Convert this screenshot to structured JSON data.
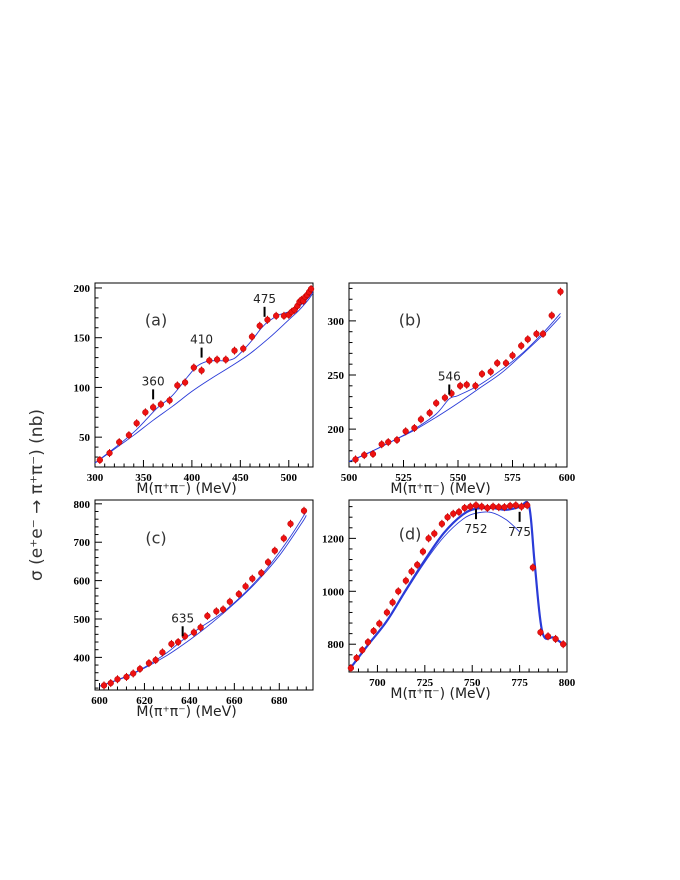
{
  "figure": {
    "y_title": "σ (e⁺e⁻ → π⁺π⁻) (nb)"
  },
  "chart_data": [
    {
      "type": "scatter",
      "panel": "(a)",
      "xlabel": "M(π⁺π⁻)  (MeV)",
      "xlim": [
        300,
        525
      ],
      "ylim": [
        20,
        205
      ],
      "xticks": [
        300,
        350,
        400,
        450,
        500
      ],
      "yticks": [
        50,
        100,
        150,
        200
      ],
      "annotations": [
        {
          "label": "360",
          "x": 360,
          "y": 88
        },
        {
          "label": "410",
          "x": 410,
          "y": 130
        },
        {
          "label": "475",
          "x": 475,
          "y": 171
        }
      ],
      "series": [
        {
          "kind": "data",
          "x": [
            305,
            315,
            325,
            335,
            343,
            352,
            360,
            368,
            377,
            385,
            393,
            402,
            410,
            418,
            426,
            435,
            444,
            453,
            462,
            470,
            478,
            487,
            495,
            500,
            503,
            506,
            509,
            511,
            513,
            515,
            517,
            519,
            521,
            523
          ],
          "y": [
            27,
            34,
            45,
            52,
            64,
            75,
            80,
            83,
            87,
            102,
            105,
            120,
            117,
            127,
            128,
            128,
            137,
            139,
            151,
            162,
            168,
            172,
            172,
            173,
            176,
            178,
            182,
            186,
            188,
            187,
            191,
            193,
            196,
            199
          ]
        },
        {
          "kind": "fit-smooth",
          "x": [
            300,
            320,
            340,
            360,
            380,
            400,
            420,
            440,
            460,
            480,
            500,
            510,
            520,
            525
          ],
          "y": [
            24,
            38,
            52,
            67,
            81,
            96,
            109,
            121,
            134,
            150,
            168,
            177,
            188,
            195
          ]
        },
        {
          "kind": "fit-structured",
          "x": [
            300,
            320,
            340,
            355,
            365,
            380,
            395,
            405,
            415,
            425,
            435,
            445,
            460,
            472,
            480,
            490,
            500,
            510,
            520,
            525
          ],
          "y": [
            24,
            39,
            55,
            70,
            80,
            92,
            110,
            121,
            126,
            127,
            127,
            130,
            145,
            160,
            167,
            173,
            176,
            181,
            190,
            197
          ]
        }
      ]
    },
    {
      "type": "scatter",
      "panel": "(b)",
      "xlabel": "M(π⁺π⁻)  (MeV)",
      "xlim": [
        500,
        600
      ],
      "ylim": [
        165,
        335
      ],
      "xticks": [
        500,
        525,
        550,
        575,
        600
      ],
      "yticks": [
        200,
        250,
        300
      ],
      "annotations": [
        {
          "label": "546",
          "x": 546,
          "y": 232
        }
      ],
      "series": [
        {
          "kind": "data",
          "x": [
            503,
            507,
            511,
            515,
            518,
            522,
            526,
            530,
            533,
            537,
            540,
            544,
            547,
            551,
            554,
            558,
            561,
            565,
            568,
            572,
            575,
            579,
            582,
            586,
            589,
            593,
            597
          ],
          "y": [
            172,
            176,
            177,
            186,
            188,
            190,
            198,
            201,
            209,
            215,
            224,
            229,
            233,
            240,
            241,
            240,
            251,
            253,
            261,
            261,
            268,
            277,
            283,
            288,
            288,
            305,
            327
          ]
        },
        {
          "kind": "fit-smooth",
          "x": [
            500,
            510,
            520,
            530,
            540,
            550,
            560,
            570,
            580,
            590,
            597
          ],
          "y": [
            170,
            179,
            189,
            199,
            211,
            224,
            238,
            252,
            270,
            289,
            304
          ]
        },
        {
          "kind": "fit-structured",
          "x": [
            500,
            510,
            520,
            530,
            540,
            546,
            550,
            560,
            570,
            580,
            590,
            597
          ],
          "y": [
            170,
            179,
            189,
            200,
            214,
            228,
            231,
            241,
            255,
            271,
            291,
            307
          ]
        }
      ]
    },
    {
      "type": "scatter",
      "panel": "(c)",
      "xlabel": "M(π⁺π⁻)  (MeV)",
      "xlim": [
        598,
        695
      ],
      "ylim": [
        315,
        810
      ],
      "xticks": [
        600,
        620,
        640,
        660,
        680
      ],
      "yticks": [
        400,
        500,
        600,
        700,
        800
      ],
      "annotations": [
        {
          "label": "635",
          "x": 637,
          "y": 455
        }
      ],
      "series": [
        {
          "kind": "data",
          "x": [
            602,
            605,
            608,
            612,
            615,
            618,
            622,
            625,
            628,
            632,
            635,
            638,
            642,
            645,
            648,
            652,
            655,
            658,
            662,
            665,
            668,
            672,
            675,
            678,
            682,
            685,
            691
          ],
          "y": [
            327,
            333,
            343,
            349,
            358,
            370,
            385,
            393,
            413,
            435,
            440,
            455,
            465,
            478,
            508,
            520,
            525,
            545,
            565,
            585,
            605,
            620,
            648,
            678,
            710,
            748,
            782
          ]
        },
        {
          "kind": "fit-smooth",
          "x": [
            600,
            610,
            620,
            630,
            640,
            650,
            660,
            670,
            680,
            690,
            692
          ],
          "y": [
            325,
            345,
            372,
            405,
            445,
            490,
            540,
            597,
            665,
            750,
            770
          ]
        },
        {
          "kind": "fit-structured",
          "x": [
            600,
            610,
            620,
            630,
            637,
            645,
            655,
            665,
            675,
            685,
            692
          ],
          "y": [
            325,
            346,
            374,
            412,
            445,
            478,
            518,
            570,
            635,
            715,
            780
          ]
        }
      ]
    },
    {
      "type": "scatter",
      "panel": "(d)",
      "xlabel": "M(π⁺π⁻)  (MeV)",
      "xlim": [
        685,
        800
      ],
      "ylim": [
        695,
        1345
      ],
      "xticks": [
        700,
        725,
        750,
        775,
        800
      ],
      "yticks": [
        800,
        1000,
        1200
      ],
      "annotations": [
        {
          "label": "752",
          "x": 752,
          "y": 1265
        },
        {
          "label": "775",
          "x": 775,
          "y": 1255
        }
      ],
      "series": [
        {
          "kind": "data",
          "x": [
            686,
            689,
            692,
            695,
            698,
            701,
            705,
            708,
            711,
            715,
            718,
            721,
            724,
            727,
            730,
            734,
            737,
            740,
            743,
            746,
            749,
            752,
            755,
            758,
            761,
            764,
            767,
            770,
            773,
            776,
            779,
            782,
            786,
            790,
            794,
            798
          ],
          "y": [
            710,
            748,
            778,
            808,
            850,
            878,
            920,
            958,
            1000,
            1040,
            1075,
            1100,
            1150,
            1200,
            1218,
            1255,
            1280,
            1293,
            1300,
            1315,
            1320,
            1325,
            1320,
            1315,
            1320,
            1318,
            1318,
            1323,
            1325,
            1320,
            1325,
            1090,
            845,
            830,
            820,
            800
          ]
        },
        {
          "kind": "fit-smooth",
          "x": [
            686,
            695,
            705,
            715,
            725,
            735,
            745,
            752,
            760,
            768,
            775
          ],
          "y": [
            712,
            795,
            885,
            1000,
            1110,
            1205,
            1272,
            1295,
            1298,
            1270,
            1225
          ]
        },
        {
          "kind": "fit-structured",
          "x": [
            686,
            695,
            705,
            715,
            725,
            735,
            745,
            752,
            760,
            768,
            775,
            780,
            783,
            787,
            793,
            798
          ],
          "y": [
            712,
            797,
            888,
            1005,
            1118,
            1220,
            1290,
            1312,
            1315,
            1308,
            1318,
            1322,
            1100,
            845,
            825,
            800
          ]
        }
      ]
    }
  ]
}
